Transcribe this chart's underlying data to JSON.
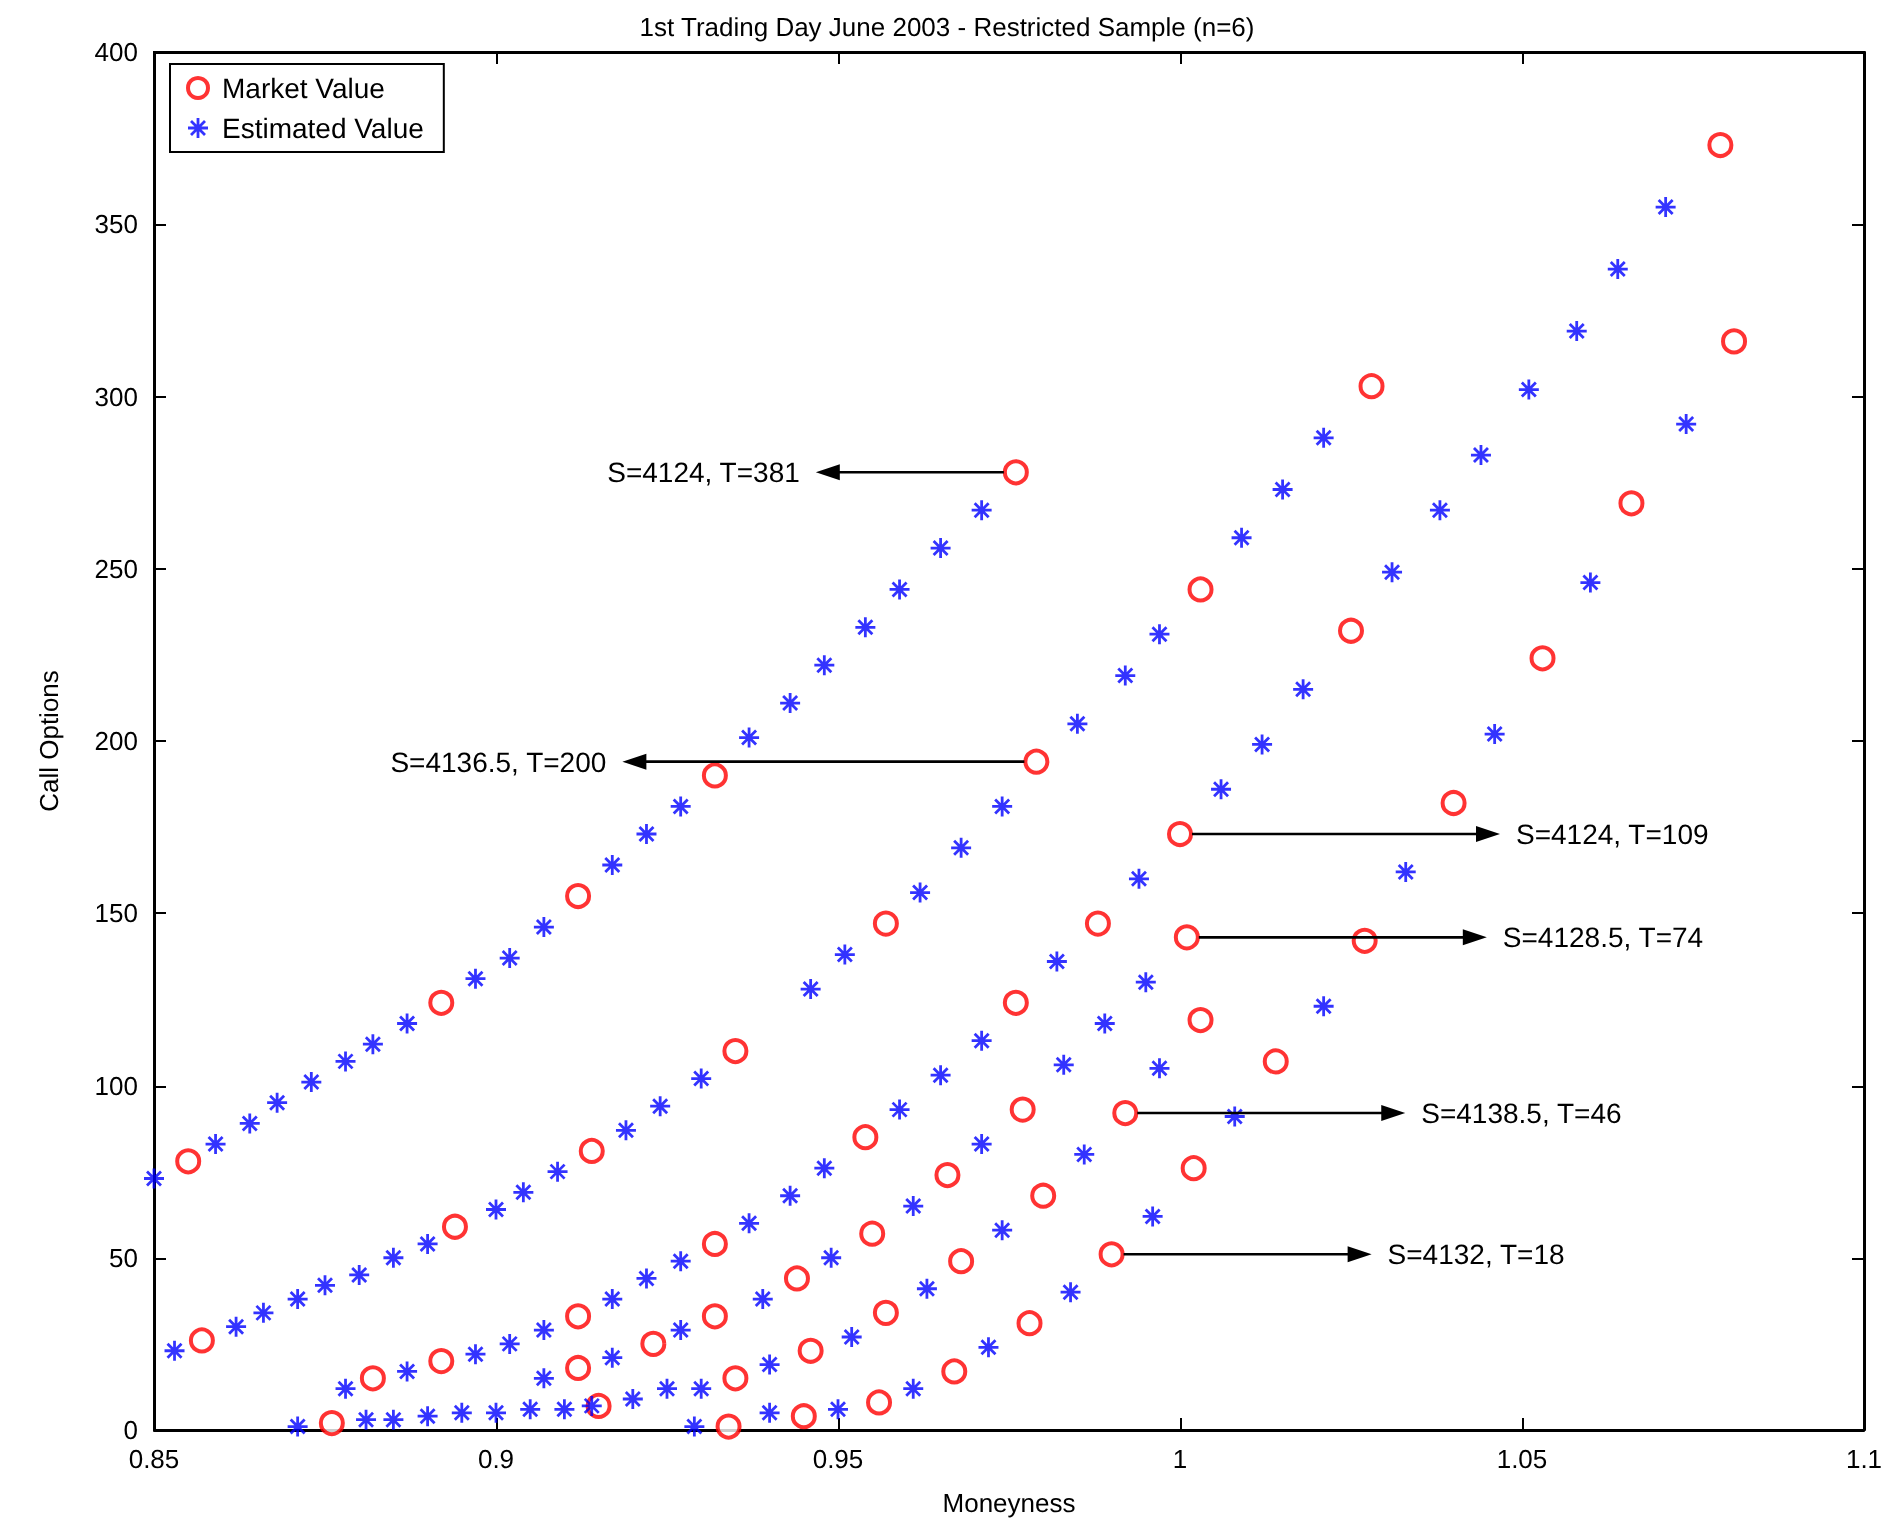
{
  "chart_data": {
    "type": "scatter",
    "title": "1st Trading Day June 2003 - Restricted Sample (n=6)",
    "xlabel": "Moneyness",
    "ylabel": "Call Options",
    "xlim": [
      0.85,
      1.1
    ],
    "xticks": [
      0.85,
      0.9,
      0.95,
      1,
      1.05,
      1.1
    ],
    "ylim": [
      0,
      400
    ],
    "yticks": [
      0,
      50,
      100,
      150,
      200,
      250,
      300,
      350,
      400
    ],
    "grid": false,
    "legend": "top left",
    "series": [
      {
        "name": "Market Value",
        "color": "#ff0000",
        "marker": "circle",
        "x": [
          0.855,
          0.892,
          0.912,
          0.932,
          0.857,
          0.894,
          0.914,
          0.932,
          0.882,
          0.892,
          0.912,
          0.876,
          0.912,
          0.923,
          0.915,
          0.932,
          0.976,
          0.979,
          0.957,
          0.935,
          1.003,
          0.988,
          0.976,
          1.0,
          1.001,
          1.003,
          0.954,
          0.977,
          0.992,
          0.966,
          0.98,
          1.002,
          0.944,
          0.955,
          0.968,
          0.99,
          0.935,
          0.946,
          0.957,
          0.978,
          0.967,
          0.934,
          0.945,
          0.956,
          1.079,
          1.081,
          1.028,
          1.025,
          1.066,
          1.053,
          1.04,
          1.027,
          1.014
        ],
        "values": [
          78,
          124,
          155,
          190,
          26,
          59,
          81,
          54,
          15,
          20,
          33,
          2,
          18,
          25,
          7,
          33,
          278,
          194,
          147,
          110,
          244,
          147,
          124,
          173,
          143,
          119,
          85,
          93,
          92,
          74,
          68,
          76,
          44,
          57,
          49,
          51,
          15,
          23,
          34,
          31,
          17,
          1,
          4,
          8,
          373,
          316,
          303,
          232,
          269,
          224,
          182,
          142,
          107
        ]
      },
      {
        "name": "Estimated Value",
        "color": "#0000ff",
        "marker": "cross",
        "x": [
          0.85,
          0.859,
          0.864,
          0.868,
          0.873,
          0.878,
          0.882,
          0.887,
          0.897,
          0.902,
          0.907,
          0.917,
          0.922,
          0.927,
          0.853,
          0.862,
          0.866,
          0.871,
          0.875,
          0.88,
          0.885,
          0.89,
          0.9,
          0.904,
          0.909,
          0.919,
          0.924,
          0.93,
          0.878,
          0.887,
          0.897,
          0.902,
          0.907,
          0.917,
          0.922,
          0.927,
          0.871,
          0.881,
          0.885,
          0.89,
          0.895,
          0.9,
          0.905,
          0.91,
          0.907,
          0.917,
          0.927,
          0.914,
          0.92,
          0.925,
          0.93,
          0.929,
          0.937,
          0.943,
          0.948,
          0.954,
          0.959,
          0.965,
          0.971,
          0.946,
          0.951,
          0.962,
          0.968,
          0.974,
          0.985,
          0.937,
          0.943,
          0.948,
          0.959,
          0.965,
          0.971,
          0.982,
          0.939,
          0.949,
          0.961,
          0.971,
          0.983,
          0.989,
          0.94,
          0.952,
          0.963,
          0.974,
          0.986,
          0.94,
          0.95,
          0.961,
          0.972,
          0.984,
          0.992,
          0.997,
          1.009,
          1.015,
          1.021,
          1.071,
          1.064,
          1.058,
          1.051,
          1.044,
          1.038,
          1.031,
          1.018,
          1.012,
          1.006,
          0.994,
          1.074,
          1.06,
          1.046,
          1.033,
          1.021,
          1.008,
          0.996,
          0.995,
          0.997
        ],
        "values": [
          73,
          83,
          89,
          95,
          101,
          107,
          112,
          118,
          131,
          137,
          146,
          164,
          173,
          181,
          23,
          30,
          34,
          38,
          42,
          45,
          50,
          54,
          64,
          69,
          75,
          87,
          94,
          102,
          12,
          17,
          22,
          25,
          29,
          38,
          44,
          49,
          1,
          3,
          3,
          4,
          5,
          5,
          6,
          6,
          15,
          21,
          29,
          7,
          9,
          12,
          12,
          1,
          201,
          211,
          222,
          233,
          244,
          256,
          267,
          128,
          138,
          156,
          169,
          181,
          205,
          60,
          68,
          76,
          93,
          103,
          113,
          136,
          38,
          50,
          65,
          83,
          106,
          118,
          19,
          27,
          41,
          58,
          80,
          5,
          6,
          12,
          24,
          40,
          219,
          231,
          259,
          273,
          288,
          355,
          337,
          319,
          302,
          283,
          267,
          249,
          215,
          199,
          186,
          160,
          292,
          246,
          202,
          162,
          123,
          91,
          62,
          130,
          105
        ]
      }
    ],
    "annotations": [
      {
        "text": "S=4124, T=381",
        "x": 0.976,
        "y": 278
      },
      {
        "text": "S=4136.5, T=200",
        "x": 0.979,
        "y": 194
      },
      {
        "text": "S=4124, T=109",
        "x": 1.0,
        "y": 173
      },
      {
        "text": "S=4128.5, T=74",
        "x": 1.001,
        "y": 143
      },
      {
        "text": "S=4138.5, T=46",
        "x": 0.992,
        "y": 92
      },
      {
        "text": "S=4132, T=18",
        "x": 0.99,
        "y": 51
      }
    ]
  }
}
